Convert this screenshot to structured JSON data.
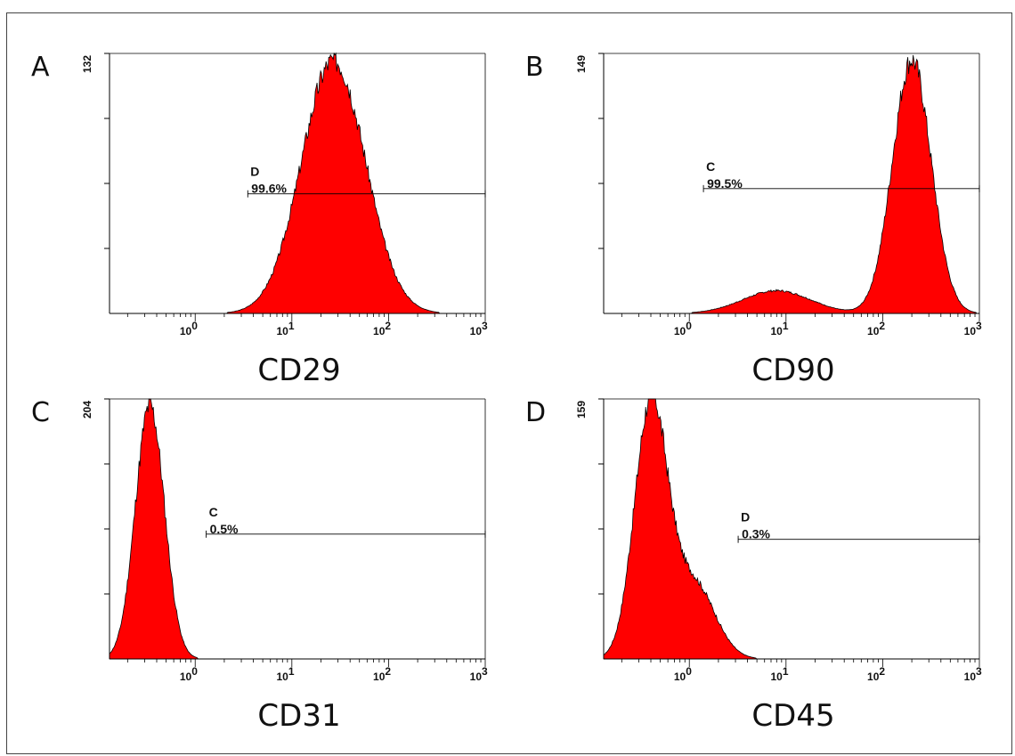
{
  "chart_data": [
    {
      "type": "area",
      "panel": "A",
      "marker": "CD29",
      "x_scale": "log",
      "xlim": [
        0.13,
        1000
      ],
      "ylim": [
        0,
        132
      ],
      "y_max_label": "132",
      "x_tick_labels": [
        {
          "base": "10",
          "exp": "0",
          "value": 1
        },
        {
          "base": "10",
          "exp": "1",
          "value": 10
        },
        {
          "base": "10",
          "exp": "2",
          "value": 100
        },
        {
          "base": "10",
          "exp": "3",
          "value": 1000
        }
      ],
      "gate": {
        "label": "D",
        "percent": "99.6%",
        "from": 3.5,
        "to": 1000,
        "level": 0.46
      },
      "peaks": [
        {
          "center": 27,
          "sigma": 0.33,
          "height": 1.0
        }
      ],
      "noise_seed": 3,
      "color": "#ff0000"
    },
    {
      "type": "area",
      "panel": "B",
      "marker": "CD90",
      "x_scale": "log",
      "xlim": [
        0.13,
        1000
      ],
      "ylim": [
        0,
        149
      ],
      "y_max_label": "149",
      "x_tick_labels": [
        {
          "base": "10",
          "exp": "0",
          "value": 1
        },
        {
          "base": "10",
          "exp": "1",
          "value": 10
        },
        {
          "base": "10",
          "exp": "2",
          "value": 100
        },
        {
          "base": "10",
          "exp": "3",
          "value": 1000
        }
      ],
      "gate": {
        "label": "C",
        "percent": "99.5%",
        "from": 1.4,
        "to": 1000,
        "level": 0.48
      },
      "peaks": [
        {
          "center": 200,
          "sigma": 0.2,
          "height": 1.0
        },
        {
          "center": 8,
          "sigma": 0.35,
          "height": 0.09
        }
      ],
      "noise_seed": 7,
      "color": "#ff0000"
    },
    {
      "type": "area",
      "panel": "C",
      "marker": "CD31",
      "x_scale": "log",
      "xlim": [
        0.13,
        1000
      ],
      "ylim": [
        0,
        204
      ],
      "y_max_label": "204",
      "x_tick_labels": [
        {
          "base": "10",
          "exp": "0",
          "value": 1
        },
        {
          "base": "10",
          "exp": "1",
          "value": 10
        },
        {
          "base": "10",
          "exp": "2",
          "value": 100
        },
        {
          "base": "10",
          "exp": "3",
          "value": 1000
        }
      ],
      "gate": {
        "label": "C",
        "percent": "0.5%",
        "from": 1.3,
        "to": 1000,
        "level": 0.48
      },
      "peaks": [
        {
          "center": 0.34,
          "sigma": 0.15,
          "height": 1.0
        }
      ],
      "noise_seed": 11,
      "color": "#ff0000"
    },
    {
      "type": "area",
      "panel": "D",
      "marker": "CD45",
      "x_scale": "log",
      "xlim": [
        0.13,
        1000
      ],
      "ylim": [
        0,
        159
      ],
      "y_max_label": "159",
      "x_tick_labels": [
        {
          "base": "10",
          "exp": "0",
          "value": 1
        },
        {
          "base": "10",
          "exp": "1",
          "value": 10
        },
        {
          "base": "10",
          "exp": "2",
          "value": 100
        },
        {
          "base": "10",
          "exp": "3",
          "value": 1000
        }
      ],
      "gate": {
        "label": "D",
        "percent": "0.3%",
        "from": 3.2,
        "to": 1000,
        "level": 0.46
      },
      "peaks": [
        {
          "center": 0.4,
          "sigma": 0.17,
          "height": 1.0
        },
        {
          "center": 1.1,
          "sigma": 0.22,
          "height": 0.3
        }
      ],
      "noise_seed": 17,
      "color": "#ff0000"
    }
  ]
}
